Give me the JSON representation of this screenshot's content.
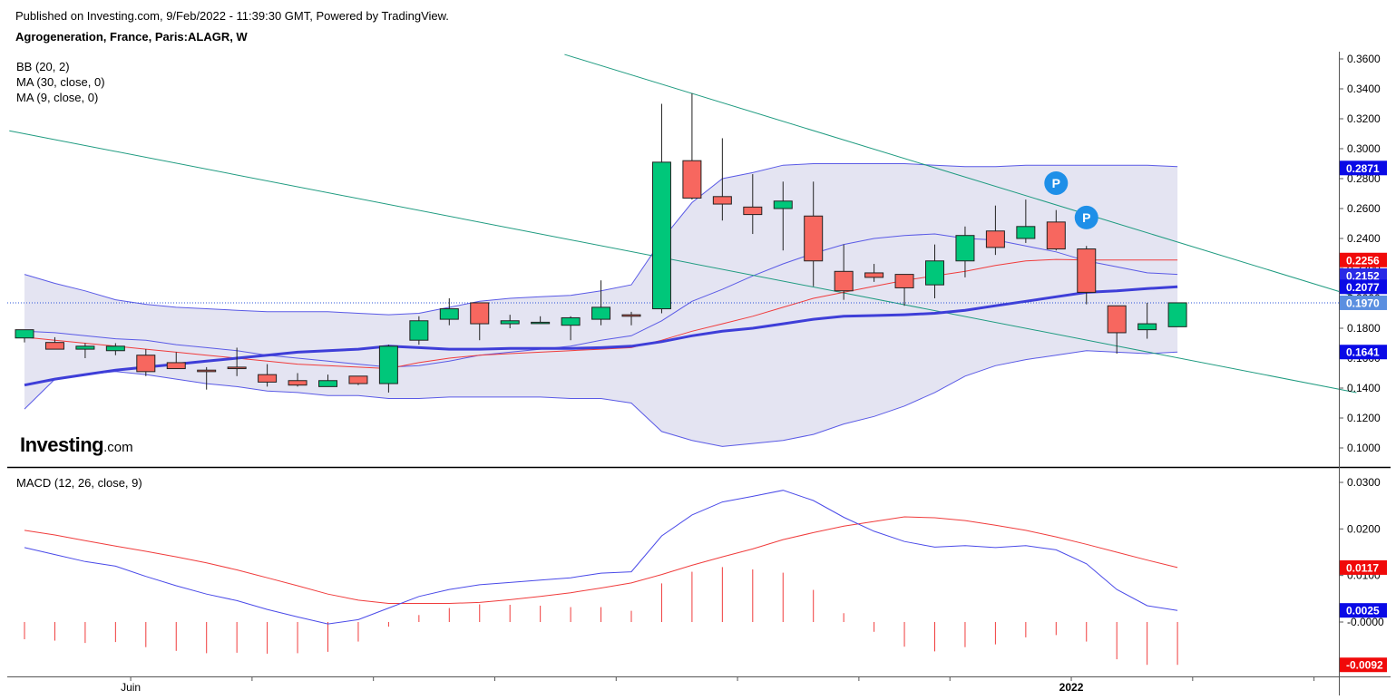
{
  "header": {
    "published": "Published on Investing.com, 9/Feb/2022 - 11:39:30 GMT, Powered by TradingView.",
    "instrument": "Agrogeneration, France, Paris:ALAGR, W"
  },
  "legend": {
    "bb": "BB (20, 2)",
    "ma30": "MA (30, close, 0)",
    "ma9": "MA (9, close, 0)",
    "macd": "MACD (12, 26, close, 9)"
  },
  "logo": {
    "brand": "Investing",
    "domain": ".com"
  },
  "marker_text": "P",
  "colors": {
    "up": "#00c77a",
    "down": "#f7675f",
    "bb_fill": "#e4e4f2",
    "bb_line": "#5a5ae6",
    "ma30": "#3e3ed8",
    "ma9": "#f03c3c",
    "trend": "#1f9b80",
    "macd_line": "#4a4ae8",
    "signal_line": "#f03c3c",
    "hist": "#f03c3c",
    "marker": "#1e8fe8",
    "price_line": "#2b55d8"
  },
  "chart_data": [
    {
      "type": "candlestick",
      "title": "Agrogeneration, France, Paris:ALAGR, W",
      "ylim": [
        0.09,
        0.363
      ],
      "y_ticks": [
        "0.3600",
        "0.3400",
        "0.3200",
        "0.3000",
        "0.2800",
        "0.2600",
        "0.2400",
        "0.2200",
        "0.2000",
        "0.1800",
        "0.1600",
        "0.1400",
        "0.1200",
        "0.1000"
      ],
      "x_labels": [
        {
          "label": "Juin",
          "index": 3.5
        },
        {
          "label": "2022",
          "index": 34.5
        }
      ],
      "x_tick_indices": [
        3.5,
        7.5,
        11.5,
        15.5,
        19.5,
        23.5,
        27.5,
        30.5,
        34.5,
        38.5,
        42.5
      ],
      "candles": [
        {
          "o": 0.1735,
          "h": 0.179,
          "l": 0.1705,
          "c": 0.179
        },
        {
          "o": 0.1705,
          "h": 0.174,
          "l": 0.166,
          "c": 0.166
        },
        {
          "o": 0.166,
          "h": 0.17,
          "l": 0.16,
          "c": 0.168
        },
        {
          "o": 0.165,
          "h": 0.17,
          "l": 0.162,
          "c": 0.168
        },
        {
          "o": 0.162,
          "h": 0.166,
          "l": 0.148,
          "c": 0.151
        },
        {
          "o": 0.157,
          "h": 0.164,
          "l": 0.153,
          "c": 0.153
        },
        {
          "o": 0.152,
          "h": 0.154,
          "l": 0.139,
          "c": 0.151
        },
        {
          "o": 0.154,
          "h": 0.167,
          "l": 0.148,
          "c": 0.153
        },
        {
          "o": 0.149,
          "h": 0.156,
          "l": 0.141,
          "c": 0.144
        },
        {
          "o": 0.145,
          "h": 0.15,
          "l": 0.141,
          "c": 0.142
        },
        {
          "o": 0.141,
          "h": 0.149,
          "l": 0.141,
          "c": 0.145
        },
        {
          "o": 0.148,
          "h": 0.148,
          "l": 0.142,
          "c": 0.143
        },
        {
          "o": 0.143,
          "h": 0.169,
          "l": 0.137,
          "c": 0.168
        },
        {
          "o": 0.172,
          "h": 0.188,
          "l": 0.169,
          "c": 0.185
        },
        {
          "o": 0.186,
          "h": 0.2,
          "l": 0.182,
          "c": 0.193
        },
        {
          "o": 0.197,
          "h": 0.197,
          "l": 0.172,
          "c": 0.183
        },
        {
          "o": 0.183,
          "h": 0.189,
          "l": 0.18,
          "c": 0.185
        },
        {
          "o": 0.184,
          "h": 0.188,
          "l": 0.183,
          "c": 0.184
        },
        {
          "o": 0.182,
          "h": 0.188,
          "l": 0.172,
          "c": 0.187
        },
        {
          "o": 0.186,
          "h": 0.212,
          "l": 0.182,
          "c": 0.194
        },
        {
          "o": 0.189,
          "h": 0.191,
          "l": 0.182,
          "c": 0.188
        },
        {
          "o": 0.193,
          "h": 0.33,
          "l": 0.19,
          "c": 0.291
        },
        {
          "o": 0.292,
          "h": 0.337,
          "l": 0.266,
          "c": 0.267
        },
        {
          "o": 0.268,
          "h": 0.307,
          "l": 0.252,
          "c": 0.263
        },
        {
          "o": 0.261,
          "h": 0.283,
          "l": 0.243,
          "c": 0.256
        },
        {
          "o": 0.26,
          "h": 0.278,
          "l": 0.232,
          "c": 0.265
        },
        {
          "o": 0.255,
          "h": 0.278,
          "l": 0.208,
          "c": 0.225
        },
        {
          "o": 0.218,
          "h": 0.236,
          "l": 0.199,
          "c": 0.205
        },
        {
          "o": 0.217,
          "h": 0.223,
          "l": 0.211,
          "c": 0.214
        },
        {
          "o": 0.216,
          "h": 0.216,
          "l": 0.195,
          "c": 0.207
        },
        {
          "o": 0.209,
          "h": 0.236,
          "l": 0.2,
          "c": 0.225
        },
        {
          "o": 0.225,
          "h": 0.248,
          "l": 0.214,
          "c": 0.242
        },
        {
          "o": 0.245,
          "h": 0.262,
          "l": 0.229,
          "c": 0.234
        },
        {
          "o": 0.24,
          "h": 0.266,
          "l": 0.237,
          "c": 0.248
        },
        {
          "o": 0.251,
          "h": 0.259,
          "l": 0.232,
          "c": 0.233
        },
        {
          "o": 0.233,
          "h": 0.235,
          "l": 0.196,
          "c": 0.204
        },
        {
          "o": 0.195,
          "h": 0.195,
          "l": 0.163,
          "c": 0.177
        },
        {
          "o": 0.179,
          "h": 0.197,
          "l": 0.173,
          "c": 0.183
        },
        {
          "o": 0.181,
          "h": 0.197,
          "l": 0.181,
          "c": 0.197
        }
      ],
      "bb_upper": [
        0.216,
        0.21,
        0.205,
        0.199,
        0.196,
        0.194,
        0.193,
        0.192,
        0.191,
        0.191,
        0.191,
        0.19,
        0.189,
        0.19,
        0.194,
        0.198,
        0.2,
        0.201,
        0.202,
        0.205,
        0.209,
        0.239,
        0.264,
        0.28,
        0.284,
        0.289,
        0.29,
        0.29,
        0.29,
        0.29,
        0.289,
        0.288,
        0.288,
        0.289,
        0.289,
        0.289,
        0.289,
        0.289,
        0.288
      ],
      "bb_mid": [
        0.178,
        0.177,
        0.175,
        0.173,
        0.172,
        0.169,
        0.167,
        0.165,
        0.162,
        0.16,
        0.158,
        0.156,
        0.154,
        0.155,
        0.158,
        0.162,
        0.164,
        0.166,
        0.168,
        0.172,
        0.175,
        0.185,
        0.198,
        0.206,
        0.215,
        0.223,
        0.23,
        0.236,
        0.24,
        0.242,
        0.243,
        0.24,
        0.239,
        0.235,
        0.231,
        0.225,
        0.221,
        0.217,
        0.216
      ],
      "bb_lower": [
        0.126,
        0.146,
        0.149,
        0.151,
        0.149,
        0.146,
        0.143,
        0.141,
        0.138,
        0.137,
        0.135,
        0.135,
        0.133,
        0.133,
        0.134,
        0.134,
        0.134,
        0.134,
        0.133,
        0.133,
        0.13,
        0.111,
        0.105,
        0.101,
        0.103,
        0.105,
        0.109,
        0.116,
        0.121,
        0.128,
        0.137,
        0.148,
        0.155,
        0.159,
        0.162,
        0.165,
        0.164,
        0.163,
        0.1641
      ],
      "ma30": [
        0.142,
        0.146,
        0.149,
        0.152,
        0.154,
        0.156,
        0.158,
        0.16,
        0.162,
        0.164,
        0.165,
        0.166,
        0.168,
        0.167,
        0.166,
        0.166,
        0.1665,
        0.1665,
        0.1665,
        0.167,
        0.168,
        0.171,
        0.175,
        0.178,
        0.18,
        0.183,
        0.186,
        0.188,
        0.1885,
        0.189,
        0.19,
        0.192,
        0.195,
        0.198,
        0.201,
        0.204,
        0.205,
        0.2065,
        0.2077
      ],
      "ma9": [
        0.174,
        0.172,
        0.17,
        0.168,
        0.166,
        0.164,
        0.162,
        0.16,
        0.158,
        0.156,
        0.155,
        0.154,
        0.153,
        0.157,
        0.16,
        0.162,
        0.163,
        0.164,
        0.165,
        0.166,
        0.167,
        0.172,
        0.178,
        0.183,
        0.188,
        0.194,
        0.2,
        0.204,
        0.208,
        0.212,
        0.215,
        0.218,
        0.222,
        0.225,
        0.226,
        0.2256,
        0.2256,
        0.2256,
        0.2256
      ],
      "trendlines": [
        {
          "from": {
            "index": -0.5,
            "value": 0.312
          },
          "to": {
            "index": 43.9,
            "value": 0.137
          }
        },
        {
          "from": {
            "index": 17.8,
            "value": 0.363
          },
          "to": {
            "index": 43.9,
            "value": 0.201
          }
        }
      ],
      "pivot_markers": [
        {
          "index": 34.0,
          "value": 0.277
        },
        {
          "index": 35.0,
          "value": 0.254
        }
      ],
      "last_price": 0.197,
      "axis_badges": [
        {
          "text": "0.2871",
          "value": 0.2871,
          "color": "#0a0ae6"
        },
        {
          "text": "0.2256",
          "value": 0.2256,
          "color": "#f00a0a"
        },
        {
          "text": "0.2152",
          "value": 0.2152,
          "color": "#2929e6"
        },
        {
          "text": "0.2077",
          "value": 0.2077,
          "color": "#0a0ae6"
        },
        {
          "text": "0.1970",
          "value": 0.197,
          "color": "#5b8fe0"
        },
        {
          "text": "0.1641",
          "value": 0.1641,
          "color": "#0a0ae6"
        }
      ]
    },
    {
      "type": "line",
      "title": "MACD (12, 26, close, 9)",
      "ylim": [
        -0.0122,
        0.033
      ],
      "y_ticks": [
        "0.0300",
        "0.0200",
        "0.0100",
        "-0.0000"
      ],
      "macd": [
        0.016,
        0.0145,
        0.013,
        0.012,
        0.0098,
        0.0078,
        0.006,
        0.0046,
        0.0027,
        0.0011,
        -0.0004,
        0.0005,
        0.003,
        0.0055,
        0.007,
        0.008,
        0.0085,
        0.009,
        0.0095,
        0.0105,
        0.0108,
        0.0185,
        0.023,
        0.0258,
        0.027,
        0.0283,
        0.0261,
        0.0225,
        0.0195,
        0.0173,
        0.0161,
        0.0164,
        0.016,
        0.0164,
        0.0155,
        0.0125,
        0.007,
        0.0035,
        0.0025
      ],
      "signal": [
        0.0197,
        0.0187,
        0.0175,
        0.0163,
        0.0152,
        0.014,
        0.0127,
        0.0112,
        0.0095,
        0.0078,
        0.006,
        0.0047,
        0.004,
        0.004,
        0.004,
        0.0042,
        0.0048,
        0.0055,
        0.0063,
        0.0073,
        0.0084,
        0.0102,
        0.0122,
        0.014,
        0.0157,
        0.0177,
        0.0192,
        0.0206,
        0.0216,
        0.0226,
        0.0224,
        0.0218,
        0.0208,
        0.0197,
        0.0183,
        0.0167,
        0.015,
        0.0133,
        0.0117
      ],
      "histogram": [
        -0.0037,
        -0.004,
        -0.0045,
        -0.0043,
        -0.0054,
        -0.0062,
        -0.0067,
        -0.0066,
        -0.0068,
        -0.0067,
        -0.0064,
        -0.0042,
        -0.001,
        0.0015,
        0.003,
        0.0038,
        0.0037,
        0.0035,
        0.0032,
        0.0032,
        0.0024,
        0.0083,
        0.0108,
        0.0118,
        0.0113,
        0.0106,
        0.0069,
        0.0019,
        -0.0021,
        -0.0053,
        -0.0063,
        -0.0054,
        -0.0048,
        -0.0033,
        -0.0028,
        -0.0042,
        -0.008,
        -0.0092,
        -0.0092
      ],
      "axis_badges": [
        {
          "text": "0.0117",
          "value": 0.0117,
          "color": "#f00a0a"
        },
        {
          "text": "0.0025",
          "value": 0.0025,
          "color": "#0a0ae6"
        },
        {
          "text": "-0.0092",
          "value": -0.0092,
          "color": "#f00a0a"
        }
      ]
    }
  ]
}
